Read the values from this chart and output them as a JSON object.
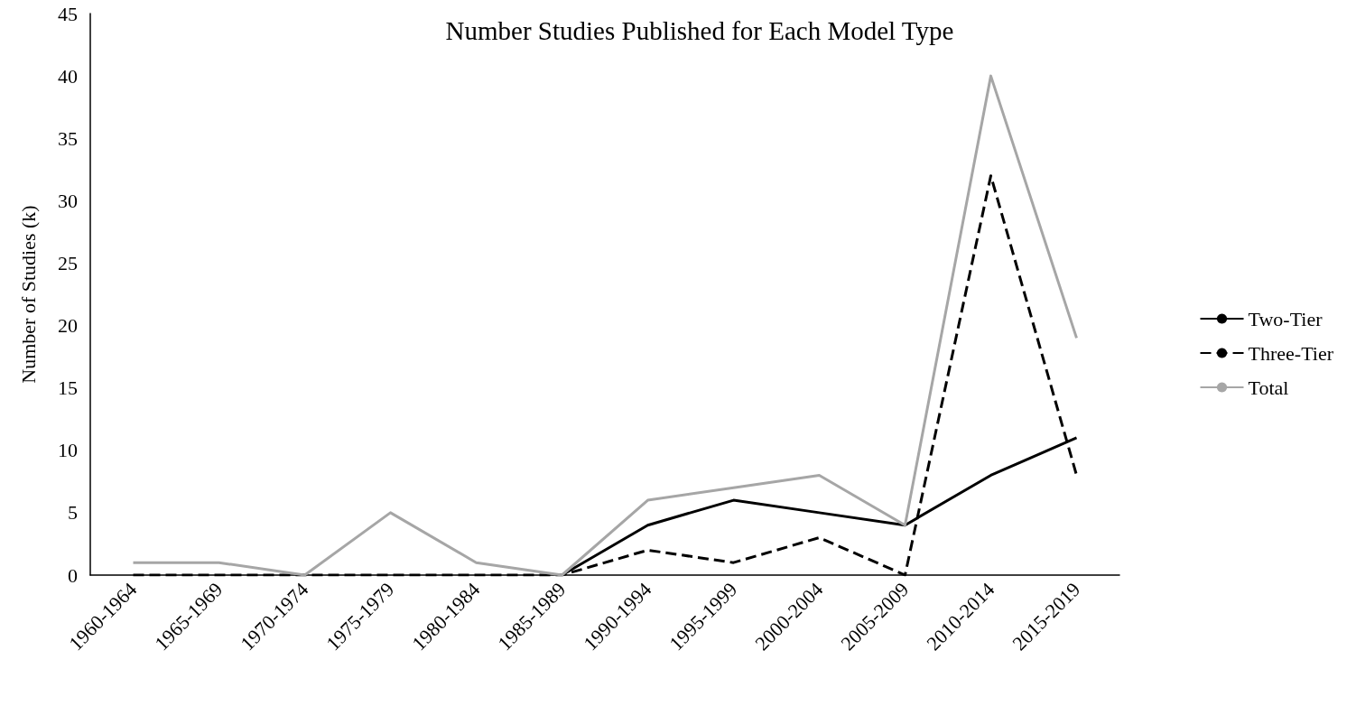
{
  "chart_data": {
    "type": "line",
    "title": "Number Studies Published for Each Model Type",
    "ylabel": "Number of Studies (k)",
    "categories": [
      "1960-1964",
      "1965-1969",
      "1970-1974",
      "1975-1979",
      "1980-1984",
      "1985-1989",
      "1990-1994",
      "1995-1999",
      "2000-2004",
      "2005-2009",
      "2010-2014",
      "2015-2019"
    ],
    "series": [
      {
        "name": "Two-Tier",
        "color": "#000000",
        "line_style": "solid",
        "values": [
          null,
          null,
          null,
          null,
          null,
          0,
          4,
          6,
          5,
          4,
          8,
          11
        ]
      },
      {
        "name": "Three-Tier",
        "color": "#000000",
        "line_style": "dashed",
        "values": [
          0,
          0,
          0,
          0,
          0,
          0,
          2,
          1,
          3,
          0,
          32,
          8
        ]
      },
      {
        "name": "Total",
        "color": "#a6a6a6",
        "line_style": "solid",
        "values": [
          1,
          1,
          0,
          5,
          1,
          0,
          6,
          7,
          8,
          4,
          40,
          19
        ]
      }
    ],
    "ylim": [
      0,
      45
    ],
    "yticks": [
      0,
      5,
      10,
      15,
      20,
      25,
      30,
      35,
      40,
      45
    ],
    "grid": false,
    "legend": "right",
    "marker": "none"
  }
}
